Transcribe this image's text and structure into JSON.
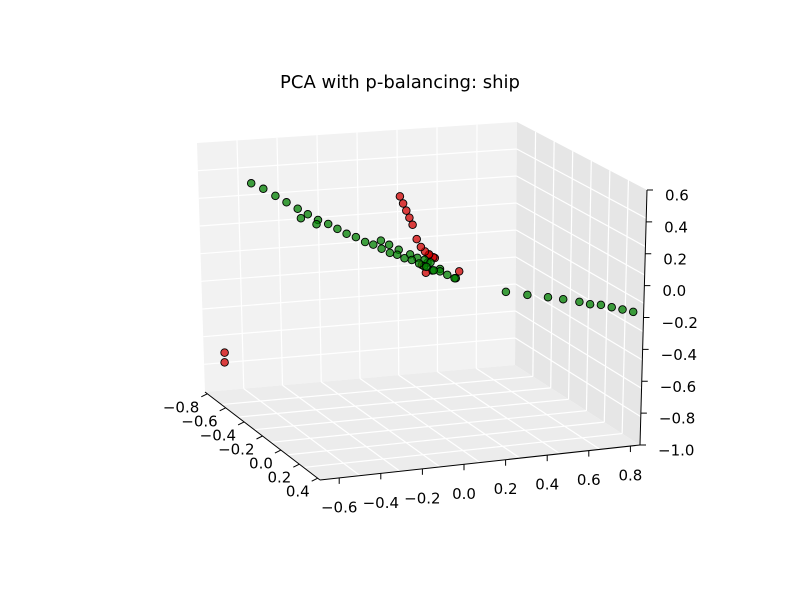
{
  "chart_data": {
    "type": "scatter",
    "title": "PCA with p-balancing: ship",
    "projection": "3d",
    "grid": true,
    "x_ticks": [
      "−0.8",
      "−0.6",
      "−0.4",
      "−0.2",
      "0.0",
      "0.2",
      "0.4"
    ],
    "y_ticks": [
      "−0.6",
      "−0.4",
      "−0.2",
      "0.0",
      "0.2",
      "0.4",
      "0.6",
      "0.8"
    ],
    "z_ticks": [
      "0.6",
      "0.4",
      "0.2",
      "0.0",
      "−0.2",
      "−0.4",
      "−0.6",
      "−0.8",
      "−1.0"
    ],
    "series": [
      {
        "color": "#008000",
        "points": [
          [
            -0.78,
            -0.4,
            0.26
          ],
          [
            -0.7,
            -0.38,
            0.26
          ],
          [
            -0.62,
            -0.36,
            0.25
          ],
          [
            -0.55,
            -0.34,
            0.24
          ],
          [
            -0.48,
            -0.32,
            0.23
          ],
          [
            -0.42,
            -0.3,
            0.22
          ],
          [
            -0.36,
            -0.28,
            0.21
          ],
          [
            -0.3,
            -0.26,
            0.21
          ],
          [
            -0.25,
            -0.24,
            0.2
          ],
          [
            -0.2,
            -0.22,
            0.19
          ],
          [
            -0.15,
            -0.2,
            0.19
          ],
          [
            -0.1,
            -0.18,
            0.18
          ],
          [
            -0.06,
            -0.16,
            0.18
          ],
          [
            -0.02,
            -0.14,
            0.17
          ],
          [
            0.02,
            -0.12,
            0.16
          ],
          [
            0.05,
            -0.1,
            0.16
          ],
          [
            0.08,
            -0.08,
            0.15
          ],
          [
            0.11,
            -0.06,
            0.15
          ],
          [
            0.14,
            -0.04,
            0.14
          ],
          [
            0.17,
            -0.02,
            0.13
          ],
          [
            0.2,
            0.0,
            0.12
          ],
          [
            0.22,
            0.02,
            0.12
          ],
          [
            0.25,
            0.04,
            0.11
          ],
          [
            0.28,
            0.06,
            0.1
          ],
          [
            -0.05,
            -0.05,
            0.14
          ],
          [
            0.0,
            -0.02,
            0.13
          ],
          [
            0.03,
            0.0,
            0.12
          ],
          [
            0.06,
            0.02,
            0.12
          ],
          [
            -0.12,
            -0.1,
            0.17
          ],
          [
            -0.08,
            -0.08,
            0.16
          ],
          [
            0.1,
            0.0,
            0.1
          ],
          [
            0.12,
            0.02,
            0.13
          ],
          [
            0.15,
            0.05,
            0.1
          ],
          [
            0.02,
            0.05,
            0.08
          ],
          [
            0.2,
            0.1,
            0.06
          ],
          [
            0.26,
            0.3,
            -0.02
          ],
          [
            0.3,
            0.38,
            -0.03
          ],
          [
            0.33,
            0.46,
            -0.04
          ],
          [
            0.35,
            0.52,
            -0.05
          ],
          [
            0.38,
            0.58,
            -0.06
          ],
          [
            0.4,
            0.62,
            -0.07
          ],
          [
            0.42,
            0.66,
            -0.07
          ],
          [
            0.44,
            0.7,
            -0.08
          ],
          [
            0.46,
            0.74,
            -0.09
          ],
          [
            0.48,
            0.78,
            -0.1
          ],
          [
            -0.4,
            -0.34,
            0.21
          ],
          [
            -0.33,
            -0.3,
            0.2
          ],
          [
            0.0,
            0.08,
            0.02
          ]
        ]
      },
      {
        "color": "#d00000",
        "points": [
          [
            -0.06,
            -0.04,
            0.46
          ],
          [
            -0.05,
            -0.03,
            0.42
          ],
          [
            -0.04,
            -0.02,
            0.38
          ],
          [
            -0.03,
            -0.01,
            0.34
          ],
          [
            -0.02,
            0.0,
            0.3
          ],
          [
            0.0,
            0.01,
            0.22
          ],
          [
            0.02,
            0.02,
            0.18
          ],
          [
            0.04,
            0.03,
            0.16
          ],
          [
            0.06,
            0.04,
            0.15
          ],
          [
            0.08,
            0.05,
            0.14
          ],
          [
            0.03,
            0.05,
            0.13
          ],
          [
            0.05,
            0.07,
            0.12
          ],
          [
            -0.04,
            0.05,
            0.04
          ],
          [
            -0.02,
            0.06,
            0.0
          ],
          [
            0.12,
            0.15,
            0.06
          ],
          [
            -0.78,
            -0.52,
            -0.76
          ],
          [
            -0.78,
            -0.52,
            -0.82
          ]
        ]
      }
    ]
  }
}
